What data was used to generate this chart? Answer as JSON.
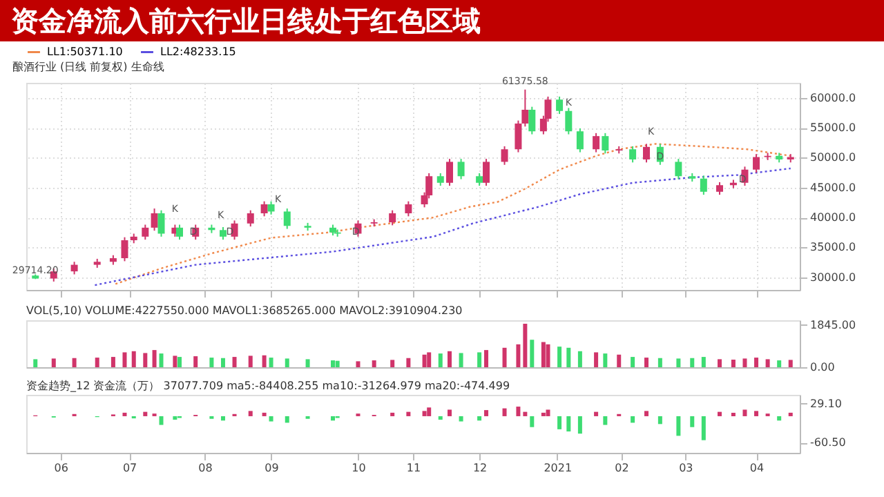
{
  "chart_data": [
    {
      "type": "candlestick",
      "title": "资金净流入前六行业日线处于红色区域",
      "subtitle": "酿酒行业 (日线 前复权) 生命线",
      "legend": "top left",
      "grid": true,
      "line_style": "dotted",
      "tick_labels": "y",
      "xlim": [
        "2020-05-17",
        "2021-04-20"
      ],
      "xticks": [
        {
          "value": "2020-06-01",
          "label": null
        },
        {
          "value": "2020-07-01",
          "label": null
        },
        {
          "value": "2020-08-03",
          "label": null
        },
        {
          "value": "2020-09-01",
          "label": null
        },
        {
          "value": "2020-10-09",
          "label": null
        },
        {
          "value": "2020-11-02",
          "label": null
        },
        {
          "value": "2020-12-01",
          "label": null
        },
        {
          "value": "2021-01-04",
          "label": null
        },
        {
          "value": "2021-02-01",
          "label": null
        },
        {
          "value": "2021-03-01",
          "label": null
        },
        {
          "value": "2021-04-01",
          "label": null
        }
      ],
      "ylim": [
        27900,
        62500
      ],
      "yticks": [
        {
          "value": 30000,
          "label": "30000.0"
        },
        {
          "value": 35000,
          "label": "35000.0"
        },
        {
          "value": 40000,
          "label": "40000.0"
        },
        {
          "value": 45000,
          "label": "45000.0"
        },
        {
          "value": 50000,
          "label": "50000.0"
        },
        {
          "value": 55000,
          "label": "55000.0"
        },
        {
          "value": 60000,
          "label": "60000.0"
        }
      ],
      "x": [
        "2020-05-21",
        "2020-05-29",
        "2020-06-07",
        "2020-06-17",
        "2020-06-24",
        "2020-06-29",
        "2020-07-03",
        "2020-07-08",
        "2020-07-12",
        "2020-07-15",
        "2020-07-21",
        "2020-07-23",
        "2020-07-30",
        "2020-08-06",
        "2020-08-11",
        "2020-08-16",
        "2020-08-23",
        "2020-08-29",
        "2020-09-01",
        "2020-09-08",
        "2020-09-17",
        "2020-09-28",
        "2020-09-30",
        "2020-10-09",
        "2020-10-16",
        "2020-10-24",
        "2020-10-31",
        "2020-11-07",
        "2020-11-09",
        "2020-11-14",
        "2020-11-18",
        "2020-11-23",
        "2020-12-01",
        "2020-12-04",
        "2020-12-12",
        "2020-12-18",
        "2020-12-21",
        "2020-12-24",
        "2020-12-29",
        "2020-12-31",
        "2021-01-05",
        "2021-01-09",
        "2021-01-14",
        "2021-01-21",
        "2021-01-25",
        "2021-01-31",
        "2021-02-06",
        "2021-02-12",
        "2021-02-18",
        "2021-02-26",
        "2021-03-04",
        "2021-03-09",
        "2021-03-16",
        "2021-03-22",
        "2021-03-27",
        "2021-04-01",
        "2021-04-06",
        "2021-04-11",
        "2021-04-16"
      ],
      "ohlc": [
        [
          30300,
          30500,
          29714.2,
          29800
        ],
        [
          29800,
          31500,
          29300,
          31000
        ],
        [
          31000,
          32600,
          30500,
          32100
        ],
        [
          32100,
          33100,
          31600,
          32600
        ],
        [
          32600,
          33700,
          32100,
          33200
        ],
        [
          33200,
          36700,
          32700,
          36200
        ],
        [
          36200,
          37300,
          35700,
          36800
        ],
        [
          36800,
          38800,
          36300,
          38300
        ],
        [
          38300,
          41500,
          37800,
          40700
        ],
        [
          40700,
          41200,
          36800,
          37300
        ],
        [
          37300,
          38800,
          36800,
          38300
        ],
        [
          38300,
          38800,
          36300,
          36800
        ],
        [
          36800,
          38800,
          36300,
          38300
        ],
        [
          38300,
          38800,
          37400,
          37900
        ],
        [
          37900,
          38400,
          36300,
          36800
        ],
        [
          36800,
          39500,
          36300,
          39000
        ],
        [
          39000,
          41200,
          38500,
          40700
        ],
        [
          40700,
          42700,
          40200,
          42200
        ],
        [
          42200,
          42700,
          40500,
          41000
        ],
        [
          41000,
          41500,
          38100,
          38600
        ],
        [
          38600,
          39100,
          37800,
          38300
        ],
        [
          38300,
          38800,
          37000,
          37500
        ],
        [
          37500,
          38000,
          36800,
          37300
        ],
        [
          37300,
          39500,
          36800,
          39000
        ],
        [
          39000,
          39700,
          38500,
          39200
        ],
        [
          39200,
          41200,
          38700,
          40700
        ],
        [
          40700,
          42700,
          40200,
          42200
        ],
        [
          42200,
          44200,
          41700,
          43700
        ],
        [
          43700,
          47400,
          43200,
          46900
        ],
        [
          46900,
          47400,
          45300,
          45800
        ],
        [
          45800,
          49800,
          45300,
          49300
        ],
        [
          49300,
          49800,
          46400,
          46900
        ],
        [
          46900,
          47400,
          45300,
          45800
        ],
        [
          45800,
          49800,
          45300,
          49300
        ],
        [
          49300,
          51900,
          48800,
          51400
        ],
        [
          51400,
          56200,
          50900,
          55700
        ],
        [
          55700,
          61375.58,
          55200,
          58000
        ],
        [
          58000,
          58500,
          53900,
          54400
        ],
        [
          54400,
          57000,
          53900,
          56500
        ],
        [
          56500,
          60200,
          56000,
          59700
        ],
        [
          59700,
          60200,
          57300,
          57800
        ],
        [
          57800,
          58300,
          53900,
          54400
        ],
        [
          54400,
          54900,
          50900,
          51400
        ],
        [
          51400,
          54100,
          50900,
          53600
        ],
        [
          53600,
          54100,
          50700,
          51200
        ],
        [
          51200,
          51900,
          50700,
          51400
        ],
        [
          51400,
          51900,
          49200,
          49700
        ],
        [
          49700,
          52300,
          49200,
          51800
        ],
        [
          51800,
          52300,
          48800,
          49300
        ],
        [
          49300,
          49800,
          46400,
          46900
        ],
        [
          46900,
          47400,
          46000,
          46500
        ],
        [
          46500,
          47000,
          43800,
          44300
        ],
        [
          44300,
          45900,
          43800,
          45400
        ],
        [
          45400,
          46300,
          44900,
          45800
        ],
        [
          45800,
          48500,
          45300,
          48000
        ],
        [
          48000,
          50600,
          47500,
          50100
        ],
        [
          50100,
          50800,
          49600,
          50300
        ],
        [
          50300,
          50800,
          49200,
          49700
        ],
        [
          49700,
          50600,
          49200,
          50100
        ]
      ],
      "colors": [
        "#3ddc72",
        "#d0346a",
        "#d0346a",
        "#d0346a",
        "#d0346a",
        "#d0346a",
        "#d0346a",
        "#d0346a",
        "#d0346a",
        "#3ddc72",
        "#d0346a",
        "#3ddc72",
        "#d0346a",
        "#3ddc72",
        "#3ddc72",
        "#d0346a",
        "#d0346a",
        "#d0346a",
        "#3ddc72",
        "#3ddc72",
        "#3ddc72",
        "#3ddc72",
        "#3ddc72",
        "#d0346a",
        "#d0346a",
        "#d0346a",
        "#d0346a",
        "#d0346a",
        "#d0346a",
        "#3ddc72",
        "#d0346a",
        "#3ddc72",
        "#3ddc72",
        "#d0346a",
        "#d0346a",
        "#d0346a",
        "#d0346a",
        "#3ddc72",
        "#d0346a",
        "#d0346a",
        "#3ddc72",
        "#3ddc72",
        "#3ddc72",
        "#d0346a",
        "#3ddc72",
        "#d0346a",
        "#3ddc72",
        "#d0346a",
        "#3ddc72",
        "#3ddc72",
        "#3ddc72",
        "#3ddc72",
        "#d0346a",
        "#d0346a",
        "#d0346a",
        "#d0346a",
        "#d0346a",
        "#3ddc72",
        "#d0346a"
      ],
      "series": [
        {
          "name": "LL1:50371.10",
          "type": "line",
          "color": "#f0884a",
          "x": [
            "2020-06-25",
            "2020-07-15",
            "2020-08-07",
            "2020-09-01",
            "2020-09-26",
            "2020-10-09",
            "2020-11-11",
            "2020-11-27",
            "2020-12-09",
            "2020-12-21",
            "2021-01-05",
            "2021-01-21",
            "2021-01-31",
            "2021-02-16",
            "2021-03-12",
            "2021-03-28",
            "2021-04-16"
          ],
          "values": [
            28900,
            31500,
            34100,
            36600,
            37500,
            38300,
            40000,
            41800,
            42600,
            44800,
            48000,
            50300,
            51400,
            52300,
            51800,
            51400,
            50300
          ]
        },
        {
          "name": "LL2:48233.15",
          "type": "line",
          "color": "#5a4ee0",
          "x": [
            "2020-06-16",
            "2020-07-30",
            "2020-09-28",
            "2020-11-11",
            "2020-11-28",
            "2020-12-27",
            "2021-01-14",
            "2021-02-06",
            "2021-03-04",
            "2021-03-24",
            "2021-04-16"
          ],
          "values": [
            28700,
            32100,
            34300,
            36800,
            39000,
            41800,
            43900,
            45800,
            46700,
            47100,
            48200
          ]
        }
      ],
      "annotations": [
        {
          "text": "61375.58",
          "x": "2020-12-21",
          "y": 61375.58
        },
        {
          "text": "29714.20",
          "x": "2020-05-21",
          "y": 29714.2
        },
        {
          "text": "K",
          "x": "2020-07-21",
          "y": 40000
        },
        {
          "text": "D",
          "x": "2020-07-29",
          "y": 36200
        },
        {
          "text": "K",
          "x": "2020-08-10",
          "y": 39000
        },
        {
          "text": "D",
          "x": "2020-08-14",
          "y": 36200
        },
        {
          "text": "K",
          "x": "2020-09-04",
          "y": 41600
        },
        {
          "text": "D",
          "x": "2020-10-08",
          "y": 36200
        },
        {
          "text": "K",
          "x": "2021-01-09",
          "y": 57800
        },
        {
          "text": "D",
          "x": "2021-02-18",
          "y": 48800
        },
        {
          "text": "K",
          "x": "2021-02-14",
          "y": 52900
        },
        {
          "text": "D",
          "x": "2021-03-26",
          "y": 45000
        }
      ]
    },
    {
      "type": "bar",
      "title": "VOL(5,10) VOLUME:4227550.000 MAVOL1:3685265.000 MAVOL2:3910904.230",
      "tick_labels": "y",
      "xlim": [
        "2020-05-17",
        "2021-04-20"
      ],
      "ylim": [
        0,
        2050
      ],
      "yticks": [
        {
          "value": 0,
          "label": "0.00"
        },
        {
          "value": 1845,
          "label": "1845.00"
        }
      ],
      "x": [
        "2020-05-21",
        "2020-05-29",
        "2020-06-07",
        "2020-06-17",
        "2020-06-24",
        "2020-06-29",
        "2020-07-03",
        "2020-07-08",
        "2020-07-12",
        "2020-07-15",
        "2020-07-21",
        "2020-07-23",
        "2020-07-30",
        "2020-08-06",
        "2020-08-11",
        "2020-08-16",
        "2020-08-23",
        "2020-08-29",
        "2020-09-01",
        "2020-09-08",
        "2020-09-17",
        "2020-09-28",
        "2020-09-30",
        "2020-10-09",
        "2020-10-16",
        "2020-10-24",
        "2020-10-31",
        "2020-11-07",
        "2020-11-09",
        "2020-11-14",
        "2020-11-18",
        "2020-11-23",
        "2020-12-01",
        "2020-12-04",
        "2020-12-12",
        "2020-12-18",
        "2020-12-21",
        "2020-12-24",
        "2020-12-29",
        "2020-12-31",
        "2021-01-05",
        "2021-01-09",
        "2021-01-14",
        "2021-01-21",
        "2021-01-25",
        "2021-01-31",
        "2021-02-06",
        "2021-02-12",
        "2021-02-18",
        "2021-02-26",
        "2021-03-04",
        "2021-03-09",
        "2021-03-16",
        "2021-03-22",
        "2021-03-27",
        "2021-04-01",
        "2021-04-06",
        "2021-04-11",
        "2021-04-16"
      ],
      "values": [
        350,
        380,
        400,
        420,
        450,
        650,
        700,
        620,
        750,
        600,
        500,
        450,
        480,
        420,
        400,
        450,
        500,
        520,
        420,
        380,
        350,
        300,
        280,
        260,
        300,
        320,
        400,
        550,
        650,
        600,
        700,
        620,
        650,
        750,
        850,
        1000,
        1900,
        1200,
        1100,
        1000,
        900,
        850,
        700,
        650,
        600,
        550,
        450,
        420,
        400,
        380,
        400,
        450,
        350,
        330,
        380,
        420,
        350,
        300,
        320
      ],
      "colors": [
        "#3ddc72",
        "#d0346a",
        "#d0346a",
        "#d0346a",
        "#d0346a",
        "#d0346a",
        "#d0346a",
        "#d0346a",
        "#d0346a",
        "#3ddc72",
        "#d0346a",
        "#3ddc72",
        "#d0346a",
        "#3ddc72",
        "#3ddc72",
        "#d0346a",
        "#d0346a",
        "#d0346a",
        "#3ddc72",
        "#3ddc72",
        "#3ddc72",
        "#3ddc72",
        "#3ddc72",
        "#d0346a",
        "#d0346a",
        "#d0346a",
        "#d0346a",
        "#d0346a",
        "#d0346a",
        "#3ddc72",
        "#d0346a",
        "#3ddc72",
        "#3ddc72",
        "#d0346a",
        "#d0346a",
        "#d0346a",
        "#d0346a",
        "#3ddc72",
        "#d0346a",
        "#d0346a",
        "#3ddc72",
        "#3ddc72",
        "#3ddc72",
        "#d0346a",
        "#3ddc72",
        "#d0346a",
        "#3ddc72",
        "#d0346a",
        "#3ddc72",
        "#3ddc72",
        "#3ddc72",
        "#3ddc72",
        "#d0346a",
        "#d0346a",
        "#d0346a",
        "#d0346a",
        "#d0346a",
        "#3ddc72",
        "#d0346a"
      ]
    },
    {
      "type": "bar",
      "title": "资金趋势_12 资金流（万） 37077.709 ma5:-84408.255 ma10:-31264.979 ma20:-474.499",
      "xlim": [
        "2020-05-17",
        "2021-04-20"
      ],
      "xticks": [
        {
          "value": "2020-06-01",
          "label": "06"
        },
        {
          "value": "2020-07-01",
          "label": "07"
        },
        {
          "value": "2020-08-03",
          "label": "08"
        },
        {
          "value": "2020-09-01",
          "label": "09"
        },
        {
          "value": "2020-10-09",
          "label": "10"
        },
        {
          "value": "2020-11-02",
          "label": "11"
        },
        {
          "value": "2020-12-01",
          "label": "12"
        },
        {
          "value": "2021-01-04",
          "label": "2021"
        },
        {
          "value": "2021-02-01",
          "label": "02"
        },
        {
          "value": "2021-03-01",
          "label": "03"
        },
        {
          "value": "2021-04-01",
          "label": "04"
        }
      ],
      "ylim": [
        -84,
        49
      ],
      "yticks": [
        {
          "value": 29.1,
          "label": "29.10"
        },
        {
          "value": -60.5,
          "label": "-60.50"
        }
      ],
      "x": [
        "2020-05-21",
        "2020-05-29",
        "2020-06-07",
        "2020-06-17",
        "2020-06-24",
        "2020-06-29",
        "2020-07-03",
        "2020-07-08",
        "2020-07-12",
        "2020-07-15",
        "2020-07-21",
        "2020-07-23",
        "2020-07-30",
        "2020-08-06",
        "2020-08-11",
        "2020-08-16",
        "2020-08-23",
        "2020-08-29",
        "2020-09-01",
        "2020-09-08",
        "2020-09-17",
        "2020-09-28",
        "2020-09-30",
        "2020-10-09",
        "2020-10-16",
        "2020-10-24",
        "2020-10-31",
        "2020-11-07",
        "2020-11-09",
        "2020-11-14",
        "2020-11-18",
        "2020-11-23",
        "2020-12-01",
        "2020-12-04",
        "2020-12-12",
        "2020-12-18",
        "2020-12-21",
        "2020-12-24",
        "2020-12-29",
        "2020-12-31",
        "2021-01-05",
        "2021-01-09",
        "2021-01-14",
        "2021-01-21",
        "2021-01-25",
        "2021-01-31",
        "2021-02-06",
        "2021-02-12",
        "2021-02-18",
        "2021-02-26",
        "2021-03-04",
        "2021-03-09",
        "2021-03-16",
        "2021-03-22",
        "2021-03-27",
        "2021-04-01",
        "2021-04-06",
        "2021-04-11",
        "2021-04-16"
      ],
      "values": [
        2,
        -3,
        5,
        -2,
        4,
        8,
        -5,
        10,
        6,
        -20,
        -8,
        -4,
        3,
        -6,
        -10,
        5,
        12,
        8,
        -12,
        -15,
        -6,
        -10,
        -4,
        6,
        3,
        8,
        10,
        12,
        20,
        -8,
        15,
        -12,
        -10,
        14,
        18,
        22,
        10,
        -25,
        8,
        15,
        -30,
        -35,
        -40,
        10,
        -20,
        5,
        -15,
        12,
        -18,
        -45,
        -25,
        -55,
        10,
        8,
        15,
        12,
        6,
        -10,
        8
      ],
      "colors": [
        "#d0346a",
        "#3ddc72",
        "#d0346a",
        "#3ddc72",
        "#d0346a",
        "#d0346a",
        "#3ddc72",
        "#d0346a",
        "#d0346a",
        "#3ddc72",
        "#3ddc72",
        "#3ddc72",
        "#d0346a",
        "#3ddc72",
        "#3ddc72",
        "#d0346a",
        "#d0346a",
        "#d0346a",
        "#3ddc72",
        "#3ddc72",
        "#3ddc72",
        "#3ddc72",
        "#3ddc72",
        "#d0346a",
        "#d0346a",
        "#d0346a",
        "#d0346a",
        "#d0346a",
        "#d0346a",
        "#3ddc72",
        "#d0346a",
        "#3ddc72",
        "#3ddc72",
        "#d0346a",
        "#d0346a",
        "#d0346a",
        "#d0346a",
        "#3ddc72",
        "#d0346a",
        "#d0346a",
        "#3ddc72",
        "#3ddc72",
        "#3ddc72",
        "#d0346a",
        "#3ddc72",
        "#d0346a",
        "#3ddc72",
        "#d0346a",
        "#3ddc72",
        "#3ddc72",
        "#3ddc72",
        "#3ddc72",
        "#d0346a",
        "#d0346a",
        "#d0346a",
        "#d0346a",
        "#d0346a",
        "#3ddc72",
        "#d0346a"
      ]
    }
  ]
}
